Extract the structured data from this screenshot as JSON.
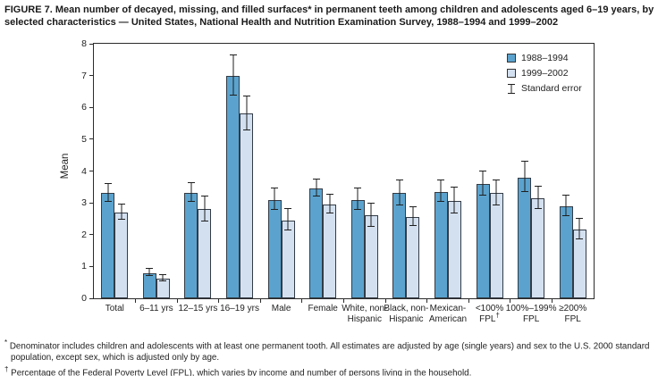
{
  "title": "FIGURE 7. Mean number of decayed, missing, and filled surfaces* in permanent teeth among children and adolescents aged 6–19 years, by selected characteristics — United States, National Health and Nutrition Examination Survey, 1988–1994 and 1999–2002",
  "chart_data": {
    "type": "bar",
    "title": "",
    "xlabel": "",
    "ylabel": "Mean",
    "ylim": [
      0,
      8
    ],
    "yticks": [
      0,
      1,
      2,
      3,
      4,
      5,
      6,
      7,
      8
    ],
    "grid": false,
    "legend_position": "top-right-inside",
    "categories": [
      [
        "Total"
      ],
      [
        "6–11 yrs"
      ],
      [
        "12–15 yrs"
      ],
      [
        "16–19 yrs"
      ],
      [
        "Male"
      ],
      [
        "Female"
      ],
      [
        "White, non-",
        "Hispanic"
      ],
      [
        "Black, non-",
        "Hispanic"
      ],
      [
        "Mexican-",
        "American"
      ],
      [
        "<100%",
        "FPL†"
      ],
      [
        "100%–199%",
        "FPL"
      ],
      [
        "≥200%",
        "FPL"
      ]
    ],
    "series": [
      {
        "name": "1988–1994",
        "values": [
          3.3,
          0.8,
          3.3,
          7.0,
          3.1,
          3.45,
          3.1,
          3.3,
          3.35,
          3.6,
          3.8,
          2.9
        ],
        "errors": [
          0.27,
          0.1,
          0.28,
          0.62,
          0.32,
          0.25,
          0.33,
          0.39,
          0.33,
          0.36,
          0.47,
          0.31
        ]
      },
      {
        "name": "1999–2002",
        "values": [
          2.7,
          0.62,
          2.8,
          5.8,
          2.45,
          2.95,
          2.6,
          2.55,
          3.05,
          3.3,
          3.15,
          2.15
        ],
        "errors": [
          0.22,
          0.08,
          0.38,
          0.52,
          0.33,
          0.28,
          0.36,
          0.28,
          0.39,
          0.39,
          0.33,
          0.31
        ]
      }
    ],
    "legend": {
      "items": [
        {
          "label": "1988–1994",
          "swatch": "dark"
        },
        {
          "label": "1999–2002",
          "swatch": "light"
        },
        {
          "label": "Standard error",
          "swatch": "errorbar"
        }
      ]
    }
  },
  "colors": {
    "series_1988_1994": "#5BA3CE",
    "series_1999_2002": "#D3E0F0",
    "bar_border": "#333B45",
    "axis": "#2B2B2B",
    "error_bar": "#1F1F1F"
  },
  "footnotes": [
    {
      "marker": "*",
      "text": "Denominator includes children and adolescents with at least one permanent tooth. All estimates are adjusted by age (single years) and sex to the U.S. 2000 standard population, except sex, which is adjusted only by age."
    },
    {
      "marker": "†",
      "text": "Percentage of the Federal Poverty Level (FPL), which varies by income and number of persons living in the household."
    }
  ]
}
